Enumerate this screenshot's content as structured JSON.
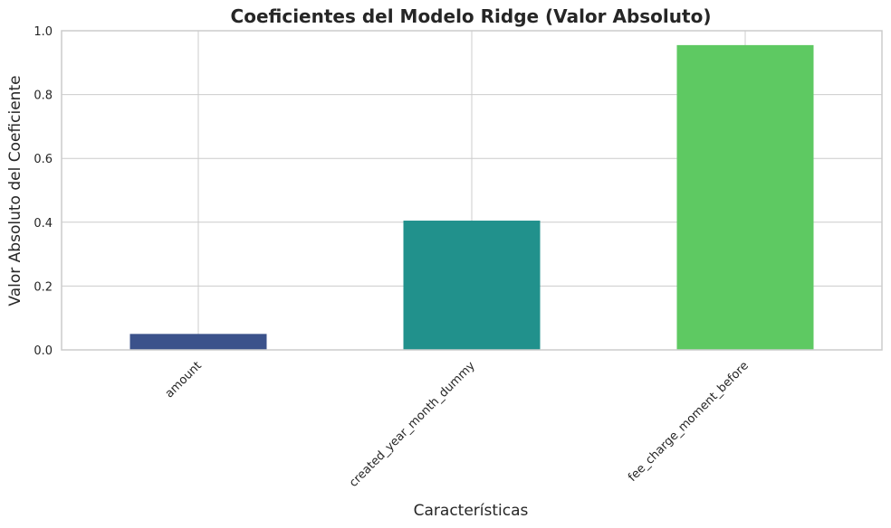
{
  "chart_data": {
    "type": "bar",
    "title": "Coeficientes del Modelo Ridge (Valor Absoluto)",
    "xlabel": "Características",
    "ylabel": "Valor Absoluto del Coeficiente",
    "categories": [
      "amount",
      "created_year_month_dummy",
      "fee_charge_moment_before"
    ],
    "values": [
      0.05,
      0.405,
      0.955
    ],
    "colors": [
      "#3b528b",
      "#21918c",
      "#5ec962"
    ],
    "ylim": [
      0,
      1.0
    ],
    "yticks": [
      "0.0",
      "0.2",
      "0.4",
      "0.6",
      "0.8",
      "1.0"
    ],
    "grid": true,
    "legend": "none"
  }
}
